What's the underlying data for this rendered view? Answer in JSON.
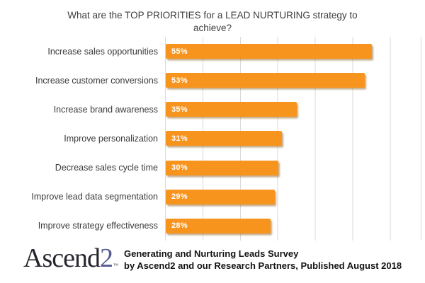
{
  "title": "What are the TOP PRIORITIES for a LEAD NURTURING strategy to achieve?",
  "chart_data": {
    "type": "bar",
    "orientation": "horizontal",
    "title": "What are the TOP PRIORITIES for a LEAD NURTURING strategy to achieve?",
    "categories": [
      "Increase sales opportunities",
      "Increase customer conversions",
      "Increase brand awareness",
      "Improve personalization",
      "Decrease sales cycle time",
      "Improve lead data segmentation",
      "Improve strategy effectiveness"
    ],
    "values": [
      55,
      53,
      35,
      31,
      30,
      29,
      28
    ],
    "value_labels": [
      "55%",
      "53%",
      "35%",
      "31%",
      "30%",
      "29%",
      "28%"
    ],
    "xlabel": "",
    "ylabel": "",
    "xlim": [
      0,
      68
    ],
    "gridline_interval_pct": 10,
    "grid": true,
    "legend": false,
    "bar_color": "#F7941E",
    "gridline_color": "#D9D9D9",
    "value_text_color": "#FFFFFF",
    "label_text_color": "#3A3A3A",
    "title_text_color": "#3D3D3D"
  },
  "footer": {
    "logo_text": "Ascend",
    "logo_number": "2",
    "logo_trademark": "™",
    "logo_number_color": "#565C91",
    "credit_line1": "Generating and Nurturing Leads Survey",
    "credit_line2": "by Ascend2 and our Research Partners, Published August 2018"
  }
}
